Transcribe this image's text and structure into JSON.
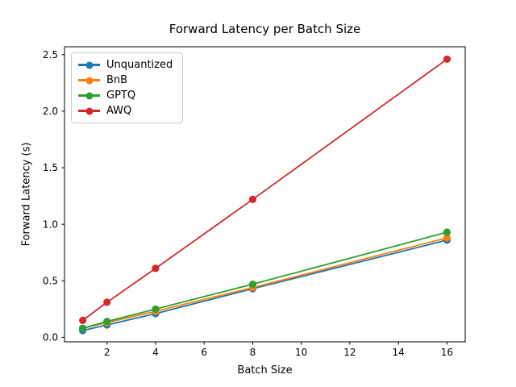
{
  "figure": {
    "background": "#ffffff",
    "text_color": "#000000",
    "spine_color": "#000000"
  },
  "chart_data": {
    "type": "line",
    "title": "Forward Latency per Batch Size",
    "xlabel": "Batch Size",
    "ylabel": "Forward Latency (s)",
    "x": [
      1,
      2,
      4,
      8,
      16
    ],
    "series": [
      {
        "name": "Unquantized",
        "color": "#1f77b4",
        "values": [
          0.06,
          0.11,
          0.21,
          0.43,
          0.86
        ]
      },
      {
        "name": "BnB",
        "color": "#ff7f0e",
        "values": [
          0.08,
          0.13,
          0.23,
          0.44,
          0.88
        ]
      },
      {
        "name": "GPTQ",
        "color": "#2ca02c",
        "values": [
          0.08,
          0.14,
          0.25,
          0.47,
          0.93
        ]
      },
      {
        "name": "AWQ",
        "color": "#d62728",
        "values": [
          0.15,
          0.31,
          0.61,
          1.22,
          2.46
        ]
      }
    ],
    "marker": "circle",
    "xticks": {
      "values": [
        2,
        4,
        6,
        8,
        10,
        12,
        14,
        16
      ],
      "labels": [
        "2",
        "4",
        "6",
        "8",
        "10",
        "12",
        "14",
        "16"
      ]
    },
    "yticks": {
      "values": [
        0,
        0.5,
        1.0,
        1.5,
        2.0,
        2.5
      ],
      "labels": [
        "0.0",
        "0.5",
        "1.0",
        "1.5",
        "2.0",
        "2.5"
      ]
    },
    "xlim": [
      0.25,
      16.75
    ],
    "ylim": [
      -0.04,
      2.57
    ],
    "grid": false,
    "legend": {
      "position": "upper left",
      "entries": [
        "Unquantized",
        "BnB",
        "GPTQ",
        "AWQ"
      ]
    }
  }
}
